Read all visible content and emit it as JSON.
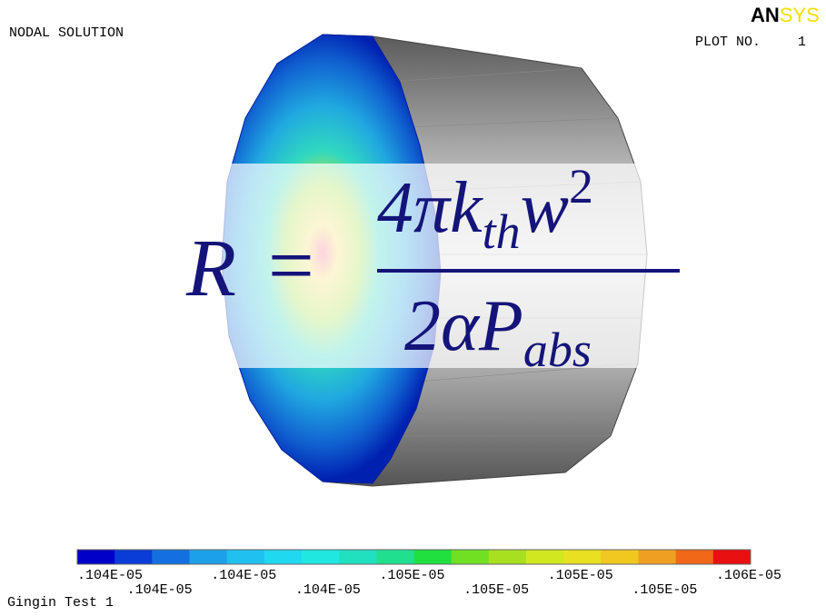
{
  "header": {
    "title": "NODAL SOLUTION",
    "logo_part1": "AN",
    "logo_part2": "SYS",
    "plot_label": "PLOT NO.",
    "plot_number": "1"
  },
  "formula": {
    "lhs": "R",
    "equals": "=",
    "numerator": "4πk",
    "numerator_sub": "th",
    "numerator_var": "w",
    "numerator_sup": "2",
    "denominator": "2αP",
    "denominator_sub": "abs"
  },
  "legend": {
    "labels": [
      ".104E-05",
      ".104E-05",
      ".104E-05",
      ".104E-05",
      ".105E-05",
      ".105E-05",
      ".105E-05",
      ".105E-05",
      ".106E-05"
    ]
  },
  "footer": {
    "caption": "Gingin Test 1"
  }
}
